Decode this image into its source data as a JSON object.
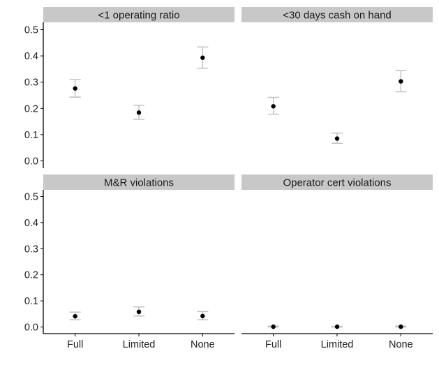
{
  "chart_data": {
    "type": "scatter",
    "layout": "2x2 facet grid, shared axes",
    "categories": [
      "Full",
      "Limited",
      "None"
    ],
    "ylim": [
      0.0,
      0.5
    ],
    "yticks": [
      "0.0",
      "0.1",
      "0.2",
      "0.3",
      "0.4",
      "0.5"
    ],
    "yticks_values": [
      0.0,
      0.1,
      0.2,
      0.3,
      0.4,
      0.5
    ],
    "grid": false,
    "xlabel": "",
    "ylabel": "",
    "point_color": "#000000",
    "errorbar_color": "#bfbfbf",
    "strip_color": "#c8c8c8",
    "panels": [
      {
        "title": "<1 operating ratio",
        "values": [
          0.276,
          0.184,
          0.393
        ],
        "lower": [
          0.243,
          0.158,
          0.353
        ],
        "upper": [
          0.31,
          0.212,
          0.434
        ]
      },
      {
        "title": "<30 days cash on hand",
        "values": [
          0.208,
          0.085,
          0.303
        ],
        "lower": [
          0.178,
          0.067,
          0.263
        ],
        "upper": [
          0.242,
          0.106,
          0.344
        ]
      },
      {
        "title": "M&R violations",
        "values": [
          0.041,
          0.058,
          0.042
        ],
        "lower": [
          0.028,
          0.042,
          0.028
        ],
        "upper": [
          0.057,
          0.077,
          0.059
        ]
      },
      {
        "title": "Operator cert violations",
        "values": [
          0.001,
          0.001,
          0.001
        ],
        "lower": [
          0.0,
          0.0,
          0.0
        ],
        "upper": [
          0.003,
          0.002,
          0.003
        ]
      }
    ]
  }
}
